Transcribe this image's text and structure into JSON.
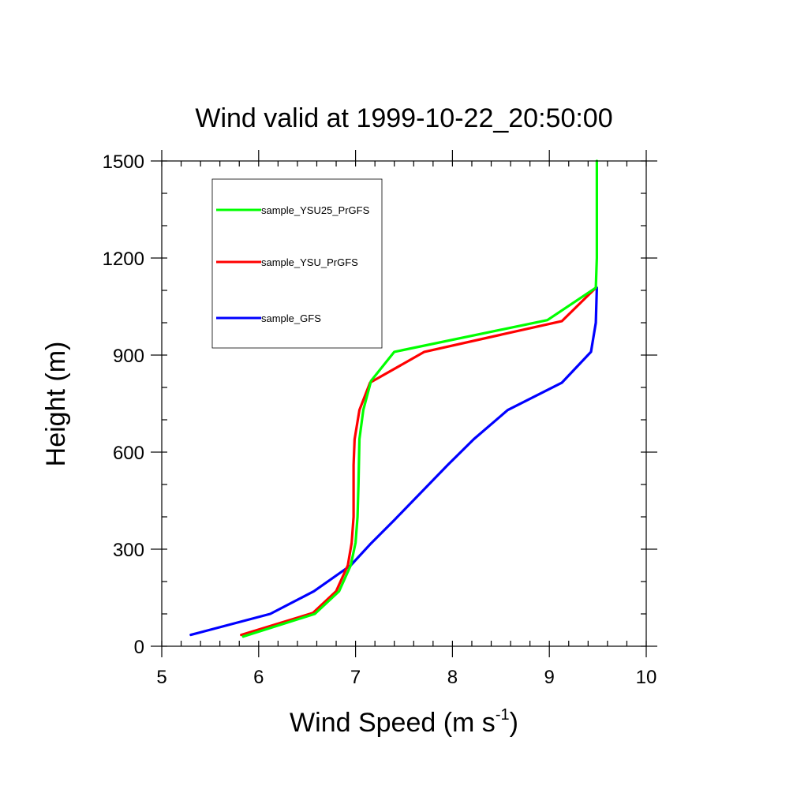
{
  "chart_data": {
    "type": "line",
    "title": "Wind valid at 1999-10-22_20:50:00",
    "xlabel": "Wind Speed (m s",
    "xlabel_sup": "-1",
    "xlabel_end": ")",
    "ylabel": "Height (m)",
    "xlim": [
      5,
      10
    ],
    "ylim": [
      0,
      1500
    ],
    "x_major_ticks": [
      5,
      6,
      7,
      8,
      9,
      10
    ],
    "x_tick_labels": [
      "5",
      "6",
      "7",
      "8",
      "9",
      "10"
    ],
    "x_minor_step": 0.2,
    "y_major_ticks": [
      0,
      300,
      600,
      900,
      1200,
      1500
    ],
    "y_tick_labels": [
      "0",
      "300",
      "600",
      "900",
      "1200",
      "1500"
    ],
    "y_minor_step": 100,
    "grid": false,
    "legend_position": "top-left",
    "series": [
      {
        "name": "sample_YSU25_PrGFS",
        "color": "#00ff00",
        "points": [
          [
            5.84,
            30
          ],
          [
            6.58,
            100
          ],
          [
            6.83,
            170
          ],
          [
            6.95,
            250
          ],
          [
            7.0,
            320
          ],
          [
            7.02,
            400
          ],
          [
            7.03,
            500
          ],
          [
            7.04,
            640
          ],
          [
            7.08,
            730
          ],
          [
            7.16,
            820
          ],
          [
            7.4,
            910
          ],
          [
            8.98,
            1008
          ],
          [
            9.48,
            1108
          ],
          [
            9.49,
            1200
          ],
          [
            9.49,
            1500
          ]
        ]
      },
      {
        "name": "sample_YSU_PrGFS",
        "color": "#ff0000",
        "points": [
          [
            5.82,
            35
          ],
          [
            6.56,
            103
          ],
          [
            6.8,
            170
          ],
          [
            6.92,
            250
          ],
          [
            6.96,
            320
          ],
          [
            6.98,
            400
          ],
          [
            6.98,
            560
          ],
          [
            6.99,
            640
          ],
          [
            7.04,
            730
          ],
          [
            7.15,
            815
          ],
          [
            7.71,
            910
          ],
          [
            9.13,
            1005
          ],
          [
            9.48,
            1108
          ]
        ]
      },
      {
        "name": "sample_GFS",
        "color": "#0000ff",
        "points": [
          [
            5.3,
            35
          ],
          [
            6.12,
            100
          ],
          [
            6.57,
            170
          ],
          [
            6.95,
            250
          ],
          [
            7.15,
            315
          ],
          [
            7.4,
            390
          ],
          [
            7.95,
            560
          ],
          [
            8.22,
            640
          ],
          [
            8.57,
            730
          ],
          [
            9.13,
            815
          ],
          [
            9.43,
            910
          ],
          [
            9.48,
            1000
          ],
          [
            9.49,
            1108
          ]
        ]
      }
    ]
  }
}
